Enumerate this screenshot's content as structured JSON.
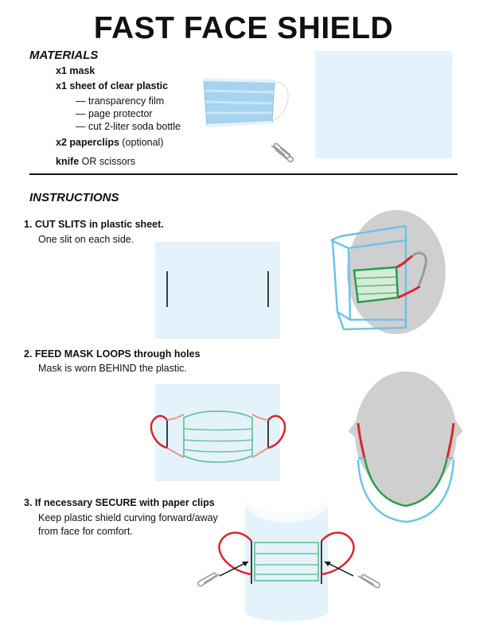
{
  "title": "FAST FACE SHIELD",
  "materials": {
    "heading": "MATERIALS",
    "mask": {
      "bold": "x1 mask"
    },
    "plastic": {
      "bold": "x1 sheet of clear plastic"
    },
    "options": [
      "— transparency film",
      "— page protector",
      "— cut 2-liter soda bottle"
    ],
    "paperclips": {
      "bold": "x2 paperclips",
      "rest": " (optional)"
    },
    "knife": {
      "bold": "knife",
      "rest": " OR scissors"
    }
  },
  "instructions": {
    "heading": "INSTRUCTIONS",
    "steps": [
      {
        "title": "1. CUT SLITS in plastic sheet.",
        "lines": [
          "One slit on each side."
        ]
      },
      {
        "title": "2. FEED MASK LOOPS through holes",
        "lines": [
          "Mask is worn BEHIND the plastic."
        ]
      },
      {
        "title": "3. If necessary SECURE with paper clips",
        "lines": [
          "Keep plastic shield curving forward/away",
          "from face for comfort."
        ]
      }
    ]
  },
  "colors": {
    "plastic_fill": "#e3f2fb",
    "shield_outline": "#6cc3e8",
    "mask_green": "#2a9d4f",
    "mask_light_green": "#6cc39a",
    "loop_red": "#d9262c",
    "loop_pink": "#e89a86",
    "head_gray": "#cfcfcf",
    "text": "#111111"
  },
  "icons": [
    "surgical-mask-photo",
    "paperclip-icon",
    "head-profile-icon",
    "head-top-icon",
    "arrow-icon"
  ]
}
